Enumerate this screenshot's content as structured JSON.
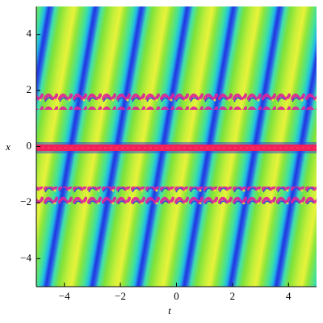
{
  "chart_data": {
    "type": "density",
    "xlabel": "t",
    "ylabel": "x",
    "xlim": [
      -5,
      5
    ],
    "ylim": [
      -5,
      5
    ],
    "xticks": [
      {
        "value": -4,
        "label": "−4"
      },
      {
        "value": -2,
        "label": "−2"
      },
      0,
      2,
      4
    ],
    "yticks": [
      {
        "value": -4,
        "label": "−4"
      },
      {
        "value": -2,
        "label": "−2"
      },
      0,
      2,
      4
    ]
  }
}
